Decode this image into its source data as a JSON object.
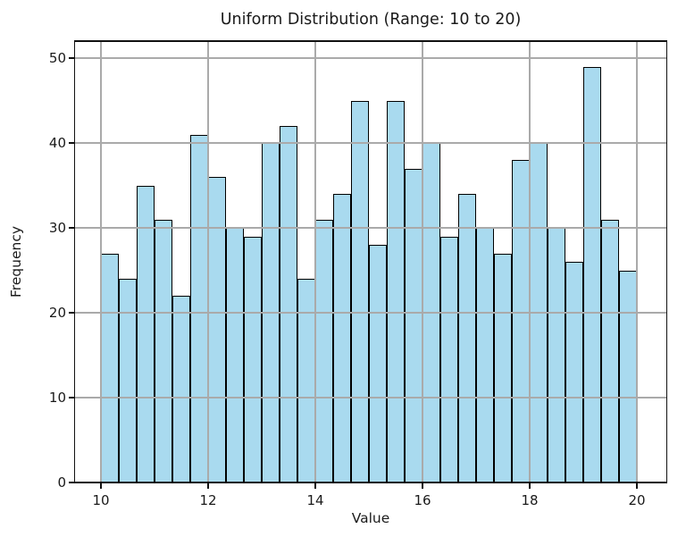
{
  "chart_data": {
    "type": "bar",
    "subtype": "histogram",
    "title": "Uniform Distribution (Range: 10 to 20)",
    "xlabel": "Value",
    "ylabel": "Frequency",
    "bin_start": 10,
    "bin_end": 20,
    "bin_count": 30,
    "bin_width": 0.3333333,
    "values": [
      27,
      24,
      35,
      31,
      22,
      41,
      36,
      30,
      29,
      40,
      42,
      24,
      31,
      34,
      45,
      28,
      45,
      37,
      40,
      29,
      34,
      30,
      27,
      38,
      40,
      30,
      26,
      49,
      31,
      25
    ],
    "total_samples": 1000,
    "x_ticks": [
      10,
      12,
      14,
      16,
      18,
      20
    ],
    "y_ticks": [
      0,
      10,
      20,
      30,
      40,
      50
    ],
    "xlim": [
      9.52,
      20.55
    ],
    "ylim": [
      0,
      52
    ],
    "grid": true,
    "grid_above_bars": true,
    "legend": "none",
    "colors": {
      "bar_fill": "#a9daef",
      "bar_edge": "#000000",
      "grid": "#aaaaaa",
      "spine": "#111111",
      "text": "#1a1a1a",
      "background": "#ffffff"
    }
  }
}
